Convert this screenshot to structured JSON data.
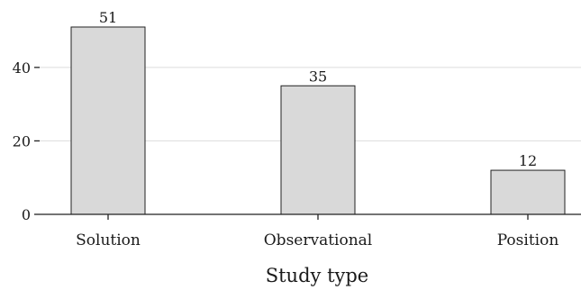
{
  "chart_data": {
    "type": "bar",
    "categories": [
      "Solution",
      "Observational",
      "Position"
    ],
    "values": [
      51,
      35,
      12
    ],
    "title": "",
    "xlabel": "Study type",
    "ylabel": "",
    "ylim": [
      0,
      55
    ],
    "yticks": [
      0,
      20,
      40
    ],
    "grid": true,
    "bar_color": "#d9d9d9",
    "bar_edge_color": "#222222",
    "show_value_labels": true
  }
}
